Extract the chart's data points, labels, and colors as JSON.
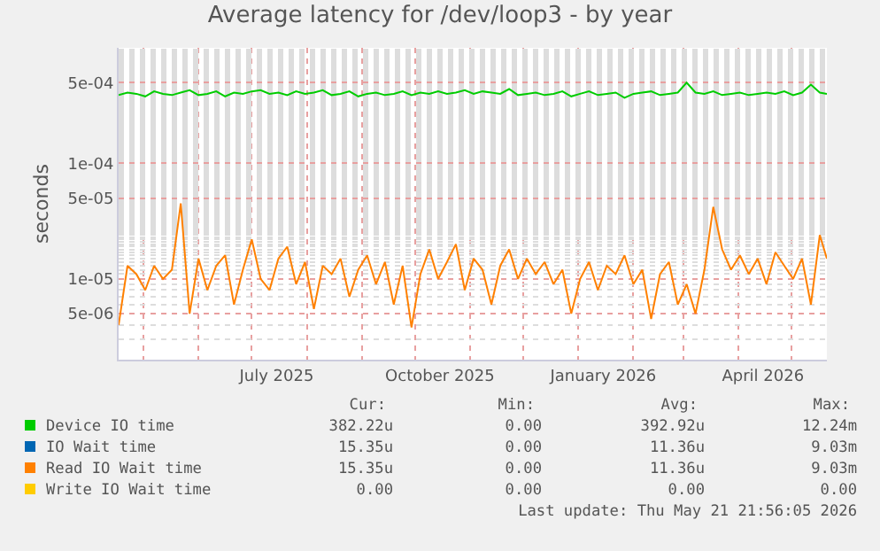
{
  "chart_data": {
    "type": "line",
    "title": "Average latency for /dev/loop3 - by year",
    "ylabel": "seconds",
    "log": true,
    "grid": true,
    "legend": "bottom",
    "marker": "none",
    "line_style": "solid",
    "xlim": [
      "2025-04-17",
      "2026-05-21"
    ],
    "xticks": [
      {
        "value": "2025-07-15",
        "label": "July 2025"
      },
      {
        "value": "2025-10-15",
        "label": "October 2025"
      },
      {
        "value": "2026-01-15",
        "label": "January 2026"
      },
      {
        "value": "2026-04-15",
        "label": "April 2026"
      }
    ],
    "ylim": [
      2e-06,
      0.001
    ],
    "yticks": [
      {
        "value": 5e-06,
        "label": "5e-06"
      },
      {
        "value": 1e-05,
        "label": "1e-05"
      },
      {
        "value": 5e-05,
        "label": "5e-05"
      },
      {
        "value": 0.0001,
        "label": "1e-04"
      },
      {
        "value": 0.0005,
        "label": "5e-04"
      }
    ],
    "x": [
      "2025-04-17",
      "2025-04-22",
      "2025-04-27",
      "2025-05-02",
      "2025-05-07",
      "2025-05-12",
      "2025-05-17",
      "2025-05-22",
      "2025-05-27",
      "2025-06-01",
      "2025-06-06",
      "2025-06-11",
      "2025-06-16",
      "2025-06-21",
      "2025-06-26",
      "2025-07-01",
      "2025-07-06",
      "2025-07-11",
      "2025-07-16",
      "2025-07-21",
      "2025-07-26",
      "2025-07-31",
      "2025-08-05",
      "2025-08-10",
      "2025-08-15",
      "2025-08-20",
      "2025-08-25",
      "2025-08-30",
      "2025-09-04",
      "2025-09-09",
      "2025-09-14",
      "2025-09-19",
      "2025-09-24",
      "2025-09-29",
      "2025-10-04",
      "2025-10-09",
      "2025-10-14",
      "2025-10-19",
      "2025-10-24",
      "2025-10-29",
      "2025-11-03",
      "2025-11-08",
      "2025-11-13",
      "2025-11-18",
      "2025-11-23",
      "2025-11-28",
      "2025-12-03",
      "2025-12-08",
      "2025-12-13",
      "2025-12-18",
      "2025-12-23",
      "2025-12-28",
      "2026-01-02",
      "2026-01-07",
      "2026-01-12",
      "2026-01-17",
      "2026-01-22",
      "2026-01-27",
      "2026-02-01",
      "2026-02-06",
      "2026-02-11",
      "2026-02-16",
      "2026-02-21",
      "2026-02-26",
      "2026-03-03",
      "2026-03-08",
      "2026-03-13",
      "2026-03-18",
      "2026-03-23",
      "2026-03-28",
      "2026-04-02",
      "2026-04-07",
      "2026-04-12",
      "2026-04-17",
      "2026-04-22",
      "2026-04-27",
      "2026-05-02",
      "2026-05-07",
      "2026-05-12",
      "2026-05-17",
      "2026-05-21"
    ],
    "series": [
      {
        "name": "Device IO time",
        "color": "#00cc00",
        "values": [
          0.00039,
          0.00041,
          0.0004,
          0.00038,
          0.00042,
          0.0004,
          0.00039,
          0.00041,
          0.00043,
          0.00039,
          0.0004,
          0.00042,
          0.00038,
          0.00041,
          0.0004,
          0.00042,
          0.00043,
          0.0004,
          0.00041,
          0.00039,
          0.00042,
          0.0004,
          0.00041,
          0.00043,
          0.00039,
          0.0004,
          0.00042,
          0.00038,
          0.0004,
          0.00041,
          0.00039,
          0.0004,
          0.00042,
          0.00039,
          0.00041,
          0.0004,
          0.00042,
          0.0004,
          0.00041,
          0.00043,
          0.0004,
          0.00042,
          0.00041,
          0.0004,
          0.00044,
          0.00039,
          0.0004,
          0.00041,
          0.00039,
          0.0004,
          0.00042,
          0.00038,
          0.0004,
          0.00042,
          0.00039,
          0.0004,
          0.00041,
          0.00037,
          0.0004,
          0.00041,
          0.00042,
          0.00039,
          0.0004,
          0.00041,
          0.0005,
          0.00041,
          0.0004,
          0.00042,
          0.00039,
          0.0004,
          0.00041,
          0.00039,
          0.0004,
          0.00041,
          0.0004,
          0.00042,
          0.00039,
          0.00041,
          0.00048,
          0.00041,
          0.0004
        ]
      },
      {
        "name": "IO Wait time",
        "color": "#0066b3",
        "values": [
          null,
          null,
          null,
          null,
          null,
          null,
          null,
          null,
          null,
          null,
          null,
          null,
          null,
          null,
          null,
          null,
          null,
          null,
          null,
          null,
          null,
          null,
          null,
          null,
          null,
          null,
          null,
          null,
          null,
          null,
          null,
          null,
          null,
          null,
          null,
          null,
          null,
          null,
          null,
          null,
          null,
          null,
          null,
          null,
          null,
          null,
          null,
          null,
          null,
          null,
          null,
          null,
          null,
          null,
          null,
          null,
          null,
          null,
          null,
          null,
          null,
          null,
          null,
          null,
          null,
          null,
          null,
          null,
          null,
          null,
          null,
          null,
          null,
          null,
          null,
          null,
          null,
          null,
          null,
          null,
          null
        ]
      },
      {
        "name": "Read IO Wait time",
        "color": "#ff8000",
        "values": [
          4e-06,
          1.3e-05,
          1.1e-05,
          8e-06,
          1.3e-05,
          1e-05,
          1.2e-05,
          4.5e-05,
          5e-06,
          1.5e-05,
          8e-06,
          1.3e-05,
          1.6e-05,
          6e-06,
          1.2e-05,
          2.2e-05,
          1e-05,
          8e-06,
          1.5e-05,
          1.9e-05,
          9e-06,
          1.4e-05,
          5.5e-06,
          1.3e-05,
          1.1e-05,
          1.5e-05,
          7e-06,
          1.2e-05,
          1.6e-05,
          9e-06,
          1.4e-05,
          6e-06,
          1.3e-05,
          3.8e-06,
          1.1e-05,
          1.8e-05,
          1e-05,
          1.4e-05,
          2e-05,
          8e-06,
          1.5e-05,
          1.2e-05,
          6e-06,
          1.3e-05,
          1.8e-05,
          1e-05,
          1.5e-05,
          1.1e-05,
          1.4e-05,
          9e-06,
          1.2e-05,
          5e-06,
          1e-05,
          1.4e-05,
          8e-06,
          1.3e-05,
          1.1e-05,
          1.6e-05,
          9e-06,
          1.2e-05,
          4.5e-06,
          1.1e-05,
          1.4e-05,
          6e-06,
          9e-06,
          5e-06,
          1.2e-05,
          4.2e-05,
          1.8e-05,
          1.2e-05,
          1.6e-05,
          1.1e-05,
          1.5e-05,
          9e-06,
          1.7e-05,
          1.3e-05,
          1e-05,
          1.5e-05,
          6e-06,
          2.4e-05,
          1.5e-05
        ]
      },
      {
        "name": "Write IO Wait time",
        "color": "#ffcc00",
        "values": [
          null,
          null,
          null,
          null,
          null,
          null,
          null,
          null,
          null,
          null,
          null,
          null,
          null,
          null,
          null,
          null,
          null,
          null,
          null,
          null,
          null,
          null,
          null,
          null,
          null,
          null,
          null,
          null,
          null,
          null,
          null,
          null,
          null,
          null,
          null,
          null,
          null,
          null,
          null,
          null,
          null,
          null,
          null,
          null,
          null,
          null,
          null,
          null,
          null,
          null,
          null,
          null,
          null,
          null,
          null,
          null,
          null,
          null,
          null,
          null,
          null,
          null,
          null,
          null,
          null,
          null,
          null,
          null,
          null,
          null,
          null,
          null,
          null,
          null,
          null,
          null,
          null,
          null,
          null,
          null,
          null
        ]
      }
    ],
    "annotations": [
      "Cur:",
      "Min:",
      "Avg:",
      "Max:",
      "382.22u",
      "0.00",
      "392.92u",
      "12.24m",
      "15.35u",
      "0.00",
      "11.36u",
      "9.03m",
      "15.35u",
      "0.00",
      "11.36u",
      "9.03m",
      "0.00",
      "0.00",
      "0.00",
      "0.00",
      "Last update: Thu May 21 21:56:05 2026"
    ]
  }
}
